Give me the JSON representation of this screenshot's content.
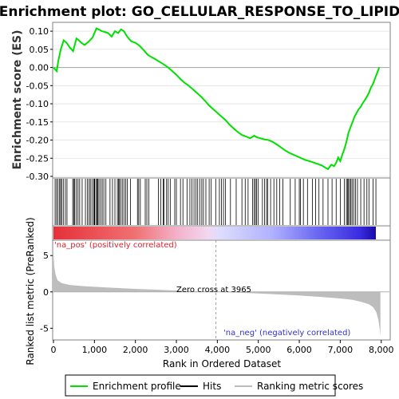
{
  "title": "Enrichment plot: GO_CELLULAR_RESPONSE_TO_LIPID",
  "colors": {
    "enrichment_line": "#00e000",
    "hits": "#000000",
    "metric_fill": "#bdbdbd",
    "zero_line": "#b0b0b0",
    "pos_label": "#e0202a",
    "neg_label": "#3030d0",
    "grid": "#d8d8d8"
  },
  "chart_data": [
    {
      "type": "line",
      "name": "enrichment-profile",
      "ylabel": "Enrichment score (ES)",
      "ylim": [
        -0.3,
        0.12
      ],
      "yticks": [
        "0.10",
        "0.05",
        "0.00",
        "-0.05",
        "-0.10",
        "-0.15",
        "-0.20",
        "-0.25",
        "-0.30"
      ],
      "x": [
        0,
        80,
        120,
        180,
        250,
        320,
        400,
        480,
        560,
        620,
        680,
        760,
        850,
        950,
        1050,
        1100,
        1180,
        1250,
        1330,
        1420,
        1500,
        1580,
        1650,
        1720,
        1800,
        1900,
        2000,
        2100,
        2200,
        2300,
        2400,
        2500,
        2600,
        2700,
        2800,
        2900,
        3000,
        3100,
        3200,
        3300,
        3400,
        3500,
        3600,
        3700,
        3800,
        3900,
        4000,
        4100,
        4200,
        4300,
        4400,
        4500,
        4600,
        4700,
        4800,
        4900,
        4960,
        5050,
        5150,
        5250,
        5350,
        5450,
        5550,
        5650,
        5750,
        5850,
        5950,
        6050,
        6150,
        6250,
        6350,
        6450,
        6550,
        6650,
        6700,
        6780,
        6850,
        6900,
        6950,
        7000,
        7050,
        7100,
        7150,
        7200,
        7250,
        7300,
        7350,
        7400,
        7450,
        7500,
        7550,
        7600,
        7650,
        7700,
        7750,
        7800,
        7850,
        7900,
        7950
      ],
      "y": [
        0.0,
        -0.01,
        0.02,
        0.05,
        0.075,
        0.068,
        0.055,
        0.045,
        0.08,
        0.075,
        0.068,
        0.062,
        0.07,
        0.082,
        0.108,
        0.105,
        0.1,
        0.098,
        0.095,
        0.085,
        0.1,
        0.095,
        0.105,
        0.1,
        0.085,
        0.072,
        0.068,
        0.06,
        0.048,
        0.035,
        0.028,
        0.022,
        0.015,
        0.008,
        0.0,
        -0.01,
        -0.02,
        -0.032,
        -0.042,
        -0.05,
        -0.06,
        -0.07,
        -0.08,
        -0.092,
        -0.105,
        -0.115,
        -0.125,
        -0.135,
        -0.145,
        -0.158,
        -0.168,
        -0.178,
        -0.186,
        -0.19,
        -0.195,
        -0.188,
        -0.192,
        -0.195,
        -0.198,
        -0.2,
        -0.205,
        -0.212,
        -0.22,
        -0.228,
        -0.235,
        -0.24,
        -0.245,
        -0.25,
        -0.255,
        -0.258,
        -0.262,
        -0.266,
        -0.27,
        -0.277,
        -0.28,
        -0.268,
        -0.272,
        -0.262,
        -0.248,
        -0.258,
        -0.24,
        -0.225,
        -0.205,
        -0.18,
        -0.165,
        -0.15,
        -0.135,
        -0.125,
        -0.115,
        -0.108,
        -0.098,
        -0.09,
        -0.08,
        -0.07,
        -0.055,
        -0.045,
        -0.03,
        -0.015,
        0.0
      ]
    },
    {
      "type": "scatter",
      "name": "hits",
      "x": [
        40,
        75,
        110,
        150,
        175,
        200,
        240,
        290,
        330,
        470,
        500,
        520,
        560,
        600,
        640,
        700,
        780,
        830,
        870,
        900,
        940,
        980,
        1000,
        1010,
        1050,
        1060,
        1080,
        1110,
        1150,
        1190,
        1230,
        1280,
        1380,
        1440,
        1500,
        1560,
        1590,
        1610,
        1640,
        1680,
        1720,
        1760,
        1800,
        1880,
        2050,
        2080,
        2120,
        2240,
        2280,
        2330,
        2560,
        2620,
        2680,
        2700,
        2760,
        2800,
        2850,
        2960,
        3000,
        3100,
        3160,
        3260,
        3330,
        3380,
        3430,
        3480,
        3520,
        3570,
        3620,
        3660,
        3720,
        3800,
        3850,
        3960,
        4050,
        4100,
        4150,
        4200,
        4320,
        4460,
        4600,
        4680,
        4750,
        4860,
        4900,
        4930,
        4960,
        5000,
        5100,
        5150,
        5200,
        5230,
        5300,
        5380,
        5450,
        5520,
        5600,
        5780,
        5900,
        6000,
        6030,
        6100,
        6200,
        6320,
        6400,
        6480,
        6580,
        6700,
        6800,
        6900,
        7000,
        7100,
        7150,
        7180,
        7200,
        7230,
        7260,
        7290,
        7330,
        7370,
        7420,
        7500,
        7580,
        7650,
        7700,
        7800,
        7870
      ]
    },
    {
      "type": "area",
      "name": "ranked-list-metric",
      "xlabel": "Rank in Ordered Dataset",
      "ylabel": "Ranked list metric (PreRanked)",
      "ylim": [
        -6.5,
        7
      ],
      "yticks": [
        "5",
        "0",
        "-5"
      ],
      "xlim": [
        0,
        8200
      ],
      "xticks": [
        "0",
        "1,000",
        "2,000",
        "3,000",
        "4,000",
        "5,000",
        "6,000",
        "7,000",
        "8,000"
      ],
      "x": [
        0,
        20,
        50,
        100,
        200,
        400,
        700,
        1000,
        1500,
        2000,
        2500,
        3000,
        3500,
        3965,
        4500,
        5000,
        5500,
        6000,
        6500,
        7000,
        7300,
        7500,
        7700,
        7800,
        7880,
        7930,
        7960,
        7980
      ],
      "y": [
        5.5,
        3.5,
        2.4,
        1.6,
        1.2,
        0.95,
        0.8,
        0.7,
        0.55,
        0.42,
        0.3,
        0.18,
        0.08,
        0.0,
        -0.1,
        -0.22,
        -0.35,
        -0.5,
        -0.68,
        -0.9,
        -1.1,
        -1.35,
        -1.7,
        -2.1,
        -2.8,
        -3.8,
        -5.0,
        -6.0
      ],
      "zero_cross": 3965
    }
  ],
  "annotations": {
    "zero_cross": "Zero cross at 3965",
    "pos_label": "'na_pos' (positively correlated)",
    "neg_label": "'na_neg' (negatively correlated)"
  },
  "legend": {
    "enrichment_profile": "Enrichment profile",
    "hits": "Hits",
    "ranking_scores": "Ranking metric scores"
  }
}
